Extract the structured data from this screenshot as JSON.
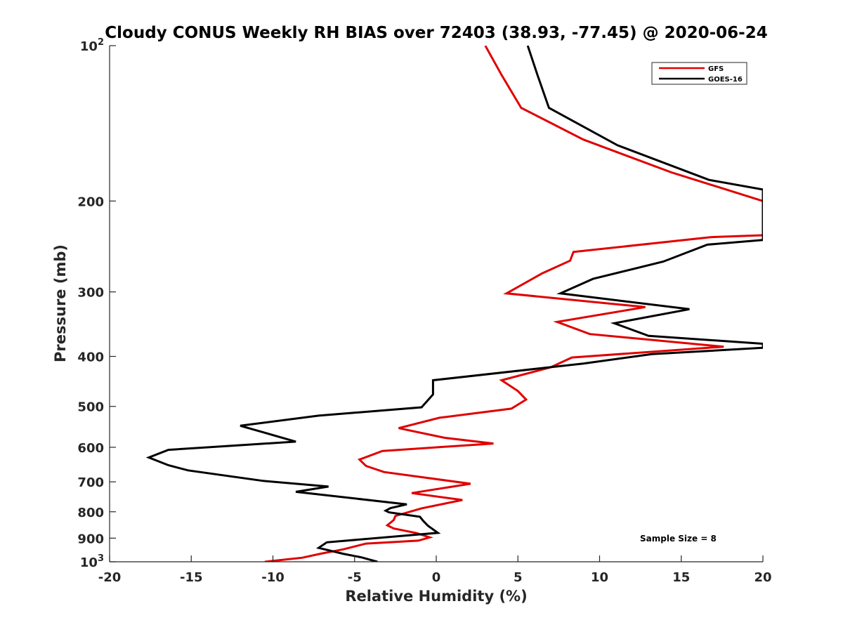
{
  "chart_data": {
    "type": "line",
    "title": "Cloudy CONUS Weekly RH BIAS over 72403 (38.93, -77.45) @ 2020-06-24",
    "xlabel": "Relative Humidity (%)",
    "ylabel": "Pressure (mb)",
    "xlim": [
      -20,
      20
    ],
    "ylim": [
      100,
      1000
    ],
    "yscale": "log",
    "y_reversed": true,
    "x_ticks": [
      "-20",
      "-15",
      "-10",
      "-5",
      "0",
      "5",
      "10",
      "15",
      "20"
    ],
    "y_ticks": [
      {
        "value": 100,
        "base": "10",
        "exp": "2"
      },
      {
        "value": 200,
        "base": "200",
        "exp": ""
      },
      {
        "value": 300,
        "base": "300",
        "exp": ""
      },
      {
        "value": 400,
        "base": "400",
        "exp": ""
      },
      {
        "value": 500,
        "base": "500",
        "exp": ""
      },
      {
        "value": 600,
        "base": "600",
        "exp": ""
      },
      {
        "value": 700,
        "base": "700",
        "exp": ""
      },
      {
        "value": 800,
        "base": "800",
        "exp": ""
      },
      {
        "value": 900,
        "base": "900",
        "exp": ""
      },
      {
        "value": 1000,
        "base": "10",
        "exp": "3"
      }
    ],
    "legend_position": "top-right",
    "annotation": "Sample Size = 8",
    "series": [
      {
        "name": "GFS",
        "color": "#e00000",
        "points": [
          [
            3.0,
            100
          ],
          [
            4.0,
            114
          ],
          [
            5.2,
            132
          ],
          [
            9.0,
            152
          ],
          [
            14.4,
            176
          ],
          [
            20.0,
            200
          ],
          [
            20.0,
            233
          ],
          [
            16.8,
            235
          ],
          [
            8.4,
            251
          ],
          [
            8.2,
            261
          ],
          [
            6.5,
            276
          ],
          [
            4.3,
            302
          ],
          [
            12.8,
            321
          ],
          [
            7.4,
            343
          ],
          [
            9.4,
            362
          ],
          [
            17.6,
            383
          ],
          [
            8.3,
            402
          ],
          [
            7.0,
            420
          ],
          [
            4.0,
            445
          ],
          [
            5.0,
            467
          ],
          [
            5.5,
            485
          ],
          [
            4.6,
            505
          ],
          [
            0.2,
            526
          ],
          [
            -2.3,
            551
          ],
          [
            0.5,
            575
          ],
          [
            3.5,
            590
          ],
          [
            -3.3,
            610
          ],
          [
            -4.7,
            634
          ],
          [
            -4.3,
            652
          ],
          [
            -3.2,
            670
          ],
          [
            2.1,
            706
          ],
          [
            -1.5,
            736
          ],
          [
            1.6,
            759
          ],
          [
            -0.9,
            788
          ],
          [
            -2.5,
            815
          ],
          [
            -2.6,
            830
          ],
          [
            -3.0,
            850
          ],
          [
            -2.6,
            862
          ],
          [
            -1.2,
            880
          ],
          [
            -0.4,
            897
          ],
          [
            -1.1,
            910
          ],
          [
            -4.3,
            922
          ],
          [
            -5.7,
            946
          ],
          [
            -7.1,
            965
          ],
          [
            -8.2,
            982
          ],
          [
            -10.5,
            1000
          ]
        ]
      },
      {
        "name": "GOES-16",
        "color": "#000000",
        "points": [
          [
            5.6,
            100
          ],
          [
            6.2,
            114
          ],
          [
            6.9,
            132
          ],
          [
            11.1,
            156
          ],
          [
            16.7,
            182
          ],
          [
            20.0,
            190
          ],
          [
            20.0,
            238
          ],
          [
            16.6,
            243
          ],
          [
            13.9,
            262
          ],
          [
            9.6,
            283
          ],
          [
            7.6,
            302
          ],
          [
            15.5,
            324
          ],
          [
            10.9,
            345
          ],
          [
            13.0,
            365
          ],
          [
            20.0,
            378
          ],
          [
            20.0,
            385
          ],
          [
            13.2,
            396
          ],
          [
            9.0,
            413
          ],
          [
            -0.2,
            445
          ],
          [
            -0.2,
            474
          ],
          [
            -0.9,
            502
          ],
          [
            -7.2,
            521
          ],
          [
            -12.0,
            545
          ],
          [
            -8.6,
            585
          ],
          [
            -16.4,
            607
          ],
          [
            -17.6,
            628
          ],
          [
            -16.4,
            650
          ],
          [
            -15.2,
            665
          ],
          [
            -10.6,
            697
          ],
          [
            -6.6,
            715
          ],
          [
            -8.6,
            732
          ],
          [
            -1.8,
            774
          ],
          [
            -2.8,
            787
          ],
          [
            -3.1,
            796
          ],
          [
            -2.9,
            802
          ],
          [
            -1.0,
            818
          ],
          [
            -0.8,
            833
          ],
          [
            -0.5,
            852
          ],
          [
            0.1,
            879
          ],
          [
            -6.7,
            917
          ],
          [
            -7.2,
            940
          ],
          [
            -5.7,
            965
          ],
          [
            -4.6,
            980
          ],
          [
            -3.6,
            1000
          ]
        ]
      }
    ]
  }
}
